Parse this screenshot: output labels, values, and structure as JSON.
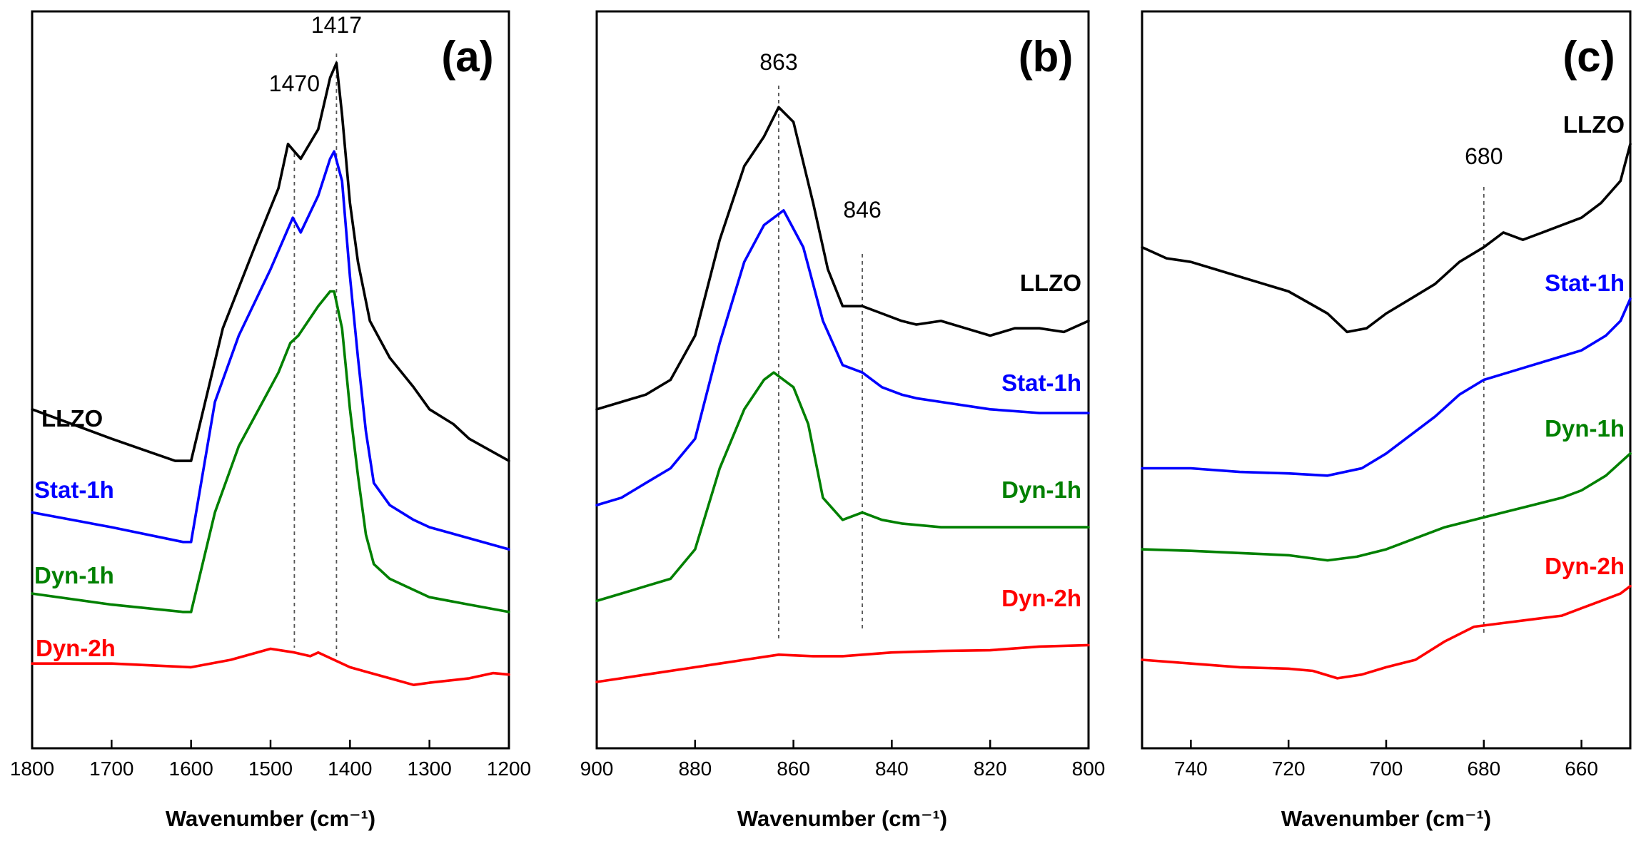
{
  "chart_data": [
    {
      "type": "line",
      "panel_label": "(a)",
      "xlabel": "Wavenumber (cm⁻¹)",
      "ylabel": "",
      "xlim": [
        1800,
        1200
      ],
      "ylim": [
        0,
        100
      ],
      "xticks": [
        1800,
        1700,
        1600,
        1500,
        1400,
        1300,
        1200
      ],
      "peak_markers": [
        {
          "x": 1470,
          "label": "1470"
        },
        {
          "x": 1417,
          "label": "1417"
        }
      ],
      "series": [
        {
          "name": "LLZO",
          "color": "#000000",
          "points": [
            [
              1800,
              46
            ],
            [
              1700,
              42
            ],
            [
              1620,
              39
            ],
            [
              1600,
              39
            ],
            [
              1560,
              57
            ],
            [
              1520,
              68
            ],
            [
              1490,
              76
            ],
            [
              1478,
              82
            ],
            [
              1470,
              81
            ],
            [
              1462,
              80
            ],
            [
              1440,
              84
            ],
            [
              1425,
              91
            ],
            [
              1417,
              93
            ],
            [
              1410,
              86
            ],
            [
              1400,
              74
            ],
            [
              1390,
              66
            ],
            [
              1375,
              58
            ],
            [
              1350,
              53
            ],
            [
              1320,
              49
            ],
            [
              1300,
              46
            ],
            [
              1270,
              44
            ],
            [
              1250,
              42
            ],
            [
              1200,
              39
            ]
          ]
        },
        {
          "name": "Stat-1h",
          "color": "#0000ff",
          "points": [
            [
              1800,
              32
            ],
            [
              1700,
              30
            ],
            [
              1610,
              28
            ],
            [
              1600,
              28
            ],
            [
              1570,
              47
            ],
            [
              1540,
              56
            ],
            [
              1500,
              65
            ],
            [
              1480,
              70
            ],
            [
              1472,
              72
            ],
            [
              1462,
              70
            ],
            [
              1440,
              75
            ],
            [
              1425,
              80
            ],
            [
              1420,
              81
            ],
            [
              1410,
              77
            ],
            [
              1400,
              64
            ],
            [
              1390,
              53
            ],
            [
              1380,
              43
            ],
            [
              1370,
              36
            ],
            [
              1350,
              33
            ],
            [
              1320,
              31
            ],
            [
              1300,
              30
            ],
            [
              1200,
              27
            ]
          ]
        },
        {
          "name": "Dyn-1h",
          "color": "#008000",
          "points": [
            [
              1800,
              21
            ],
            [
              1700,
              19.5
            ],
            [
              1610,
              18.5
            ],
            [
              1600,
              18.5
            ],
            [
              1570,
              32
            ],
            [
              1540,
              41
            ],
            [
              1510,
              47
            ],
            [
              1490,
              51
            ],
            [
              1475,
              55
            ],
            [
              1465,
              56
            ],
            [
              1440,
              60
            ],
            [
              1425,
              62
            ],
            [
              1420,
              62
            ],
            [
              1410,
              57
            ],
            [
              1400,
              46
            ],
            [
              1390,
              37
            ],
            [
              1380,
              29
            ],
            [
              1370,
              25
            ],
            [
              1350,
              23
            ],
            [
              1300,
              20.5
            ],
            [
              1250,
              19.5
            ],
            [
              1200,
              18.5
            ]
          ]
        },
        {
          "name": "Dyn-2h",
          "color": "#ff0000",
          "points": [
            [
              1800,
              11.5
            ],
            [
              1700,
              11.5
            ],
            [
              1600,
              11
            ],
            [
              1550,
              12
            ],
            [
              1500,
              13.5
            ],
            [
              1470,
              13
            ],
            [
              1450,
              12.5
            ],
            [
              1440,
              13
            ],
            [
              1400,
              11
            ],
            [
              1350,
              9.5
            ],
            [
              1320,
              8.6
            ],
            [
              1300,
              8.9
            ],
            [
              1250,
              9.5
            ],
            [
              1220,
              10.2
            ],
            [
              1200,
              10
            ]
          ]
        }
      ]
    },
    {
      "type": "line",
      "panel_label": "(b)",
      "xlabel": "Wavenumber (cm⁻¹)",
      "ylabel": "",
      "xlim": [
        900,
        800
      ],
      "ylim": [
        0,
        100
      ],
      "xticks": [
        900,
        880,
        860,
        840,
        820,
        800
      ],
      "peak_markers": [
        {
          "x": 863,
          "label": "863"
        },
        {
          "x": 846,
          "label": "846"
        }
      ],
      "series": [
        {
          "name": "LLZO",
          "color": "#000000",
          "points": [
            [
              900,
              46
            ],
            [
              895,
              47
            ],
            [
              890,
              48
            ],
            [
              885,
              50
            ],
            [
              880,
              56
            ],
            [
              875,
              69
            ],
            [
              870,
              79
            ],
            [
              866,
              83
            ],
            [
              863,
              87
            ],
            [
              860,
              85
            ],
            [
              856,
              74
            ],
            [
              853,
              65
            ],
            [
              850,
              60
            ],
            [
              846,
              60
            ],
            [
              842,
              59
            ],
            [
              838,
              58
            ],
            [
              835,
              57.5
            ],
            [
              830,
              58
            ],
            [
              825,
              57
            ],
            [
              820,
              56
            ],
            [
              815,
              57
            ],
            [
              810,
              57
            ],
            [
              805,
              56.5
            ],
            [
              800,
              58
            ]
          ]
        },
        {
          "name": "Stat-1h",
          "color": "#0000ff",
          "points": [
            [
              900,
              33
            ],
            [
              895,
              34
            ],
            [
              890,
              36
            ],
            [
              885,
              38
            ],
            [
              880,
              42
            ],
            [
              875,
              55
            ],
            [
              870,
              66
            ],
            [
              866,
              71
            ],
            [
              862,
              73
            ],
            [
              858,
              68
            ],
            [
              854,
              58
            ],
            [
              850,
              52
            ],
            [
              846,
              51
            ],
            [
              842,
              49
            ],
            [
              838,
              48
            ],
            [
              835,
              47.5
            ],
            [
              830,
              47
            ],
            [
              820,
              46
            ],
            [
              810,
              45.5
            ],
            [
              800,
              45.5
            ]
          ]
        },
        {
          "name": "Dyn-1h",
          "color": "#008000",
          "points": [
            [
              900,
              20
            ],
            [
              895,
              21
            ],
            [
              890,
              22
            ],
            [
              885,
              23
            ],
            [
              880,
              27
            ],
            [
              875,
              38
            ],
            [
              870,
              46
            ],
            [
              866,
              50
            ],
            [
              864,
              51
            ],
            [
              860,
              49
            ],
            [
              857,
              44
            ],
            [
              854,
              34
            ],
            [
              850,
              31
            ],
            [
              846,
              32
            ],
            [
              842,
              31
            ],
            [
              838,
              30.5
            ],
            [
              830,
              30
            ],
            [
              820,
              30
            ],
            [
              810,
              30
            ],
            [
              800,
              30
            ]
          ]
        },
        {
          "name": "Dyn-2h",
          "color": "#ff0000",
          "points": [
            [
              900,
              9
            ],
            [
              895,
              9.5
            ],
            [
              890,
              10
            ],
            [
              880,
              11
            ],
            [
              870,
              12
            ],
            [
              863,
              12.7
            ],
            [
              856,
              12.5
            ],
            [
              850,
              12.5
            ],
            [
              840,
              13
            ],
            [
              830,
              13.2
            ],
            [
              820,
              13.3
            ],
            [
              810,
              13.8
            ],
            [
              800,
              14
            ]
          ]
        }
      ]
    },
    {
      "type": "line",
      "panel_label": "(c)",
      "xlabel": "Wavenumber (cm⁻¹)",
      "ylabel": "",
      "xlim": [
        750,
        650
      ],
      "ylim": [
        0,
        100
      ],
      "xticks": [
        740,
        720,
        700,
        680,
        660
      ],
      "peak_markers": [
        {
          "x": 680,
          "label": "680"
        }
      ],
      "series": [
        {
          "name": "LLZO",
          "color": "#000000",
          "points": [
            [
              750,
              68
            ],
            [
              745,
              66.5
            ],
            [
              740,
              66
            ],
            [
              735,
              65
            ],
            [
              730,
              64
            ],
            [
              725,
              63
            ],
            [
              720,
              62
            ],
            [
              716,
              60.5
            ],
            [
              712,
              59
            ],
            [
              708,
              56.5
            ],
            [
              704,
              57
            ],
            [
              700,
              59
            ],
            [
              695,
              61
            ],
            [
              690,
              63
            ],
            [
              685,
              66
            ],
            [
              680,
              68
            ],
            [
              676,
              70
            ],
            [
              672,
              69
            ],
            [
              668,
              70
            ],
            [
              664,
              71
            ],
            [
              660,
              72
            ],
            [
              656,
              74
            ],
            [
              652,
              77
            ],
            [
              650,
              82
            ]
          ]
        },
        {
          "name": "Stat-1h",
          "color": "#0000ff",
          "points": [
            [
              750,
              38
            ],
            [
              740,
              38
            ],
            [
              730,
              37.5
            ],
            [
              720,
              37.3
            ],
            [
              712,
              37
            ],
            [
              705,
              38
            ],
            [
              700,
              40
            ],
            [
              696,
              42
            ],
            [
              690,
              45
            ],
            [
              685,
              48
            ],
            [
              680,
              50
            ],
            [
              675,
              51
            ],
            [
              670,
              52
            ],
            [
              665,
              53
            ],
            [
              660,
              54
            ],
            [
              655,
              56
            ],
            [
              652,
              58
            ],
            [
              650,
              61
            ]
          ]
        },
        {
          "name": "Dyn-1h",
          "color": "#008000",
          "points": [
            [
              750,
              27
            ],
            [
              740,
              26.8
            ],
            [
              730,
              26.5
            ],
            [
              720,
              26.2
            ],
            [
              712,
              25.5
            ],
            [
              706,
              26
            ],
            [
              700,
              27
            ],
            [
              694,
              28.5
            ],
            [
              688,
              30
            ],
            [
              682,
              31
            ],
            [
              676,
              32
            ],
            [
              670,
              33
            ],
            [
              664,
              34
            ],
            [
              660,
              35
            ],
            [
              655,
              37
            ],
            [
              650,
              40
            ]
          ]
        },
        {
          "name": "Dyn-2h",
          "color": "#ff0000",
          "points": [
            [
              750,
              12
            ],
            [
              740,
              11.5
            ],
            [
              730,
              11
            ],
            [
              720,
              10.8
            ],
            [
              715,
              10.5
            ],
            [
              710,
              9.5
            ],
            [
              705,
              10
            ],
            [
              700,
              11
            ],
            [
              694,
              12
            ],
            [
              688,
              14.5
            ],
            [
              682,
              16.5
            ],
            [
              676,
              17
            ],
            [
              670,
              17.5
            ],
            [
              664,
              18
            ],
            [
              660,
              19
            ],
            [
              656,
              20
            ],
            [
              652,
              21
            ],
            [
              650,
              22
            ]
          ]
        }
      ]
    }
  ]
}
